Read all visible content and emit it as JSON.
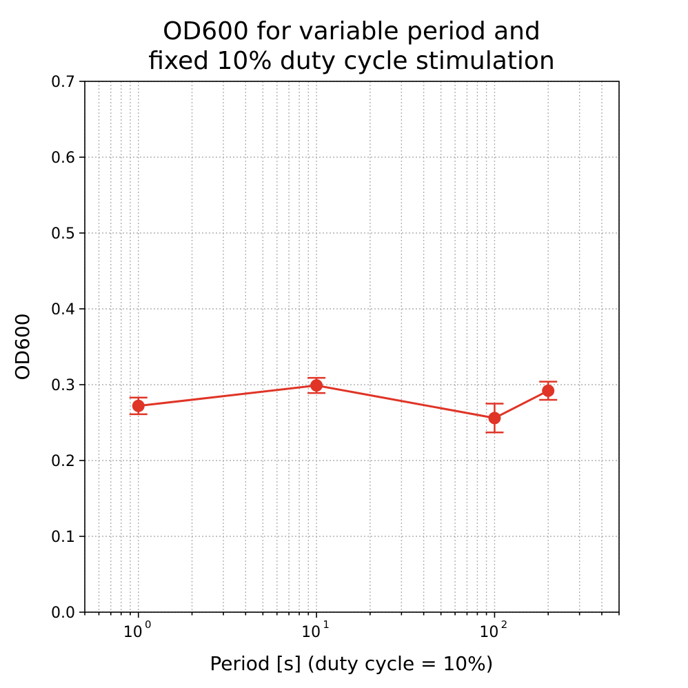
{
  "chart_data": {
    "type": "line",
    "title_lines": [
      "OD600 for variable period and",
      "fixed 10% duty cycle stimulation"
    ],
    "xlabel": "Period [s] (duty cycle = 10%)",
    "ylabel": "OD600",
    "xscale": "log",
    "xlim": [
      0.5,
      500
    ],
    "ylim": [
      0.0,
      0.7
    ],
    "y_ticks": [
      "0.0",
      "0.1",
      "0.2",
      "0.3",
      "0.4",
      "0.5",
      "0.6",
      "0.7"
    ],
    "x_ticks": [
      {
        "value": 1,
        "base": "10",
        "exp": "0"
      },
      {
        "value": 10,
        "base": "10",
        "exp": "1"
      },
      {
        "value": 100,
        "base": "10",
        "exp": "2"
      }
    ],
    "grid": true,
    "series": [
      {
        "color": "#e03426",
        "x": [
          1,
          10,
          100,
          200
        ],
        "y": [
          0.272,
          0.299,
          0.256,
          0.292
        ],
        "yerr": [
          0.011,
          0.01,
          0.019,
          0.012
        ]
      }
    ]
  }
}
